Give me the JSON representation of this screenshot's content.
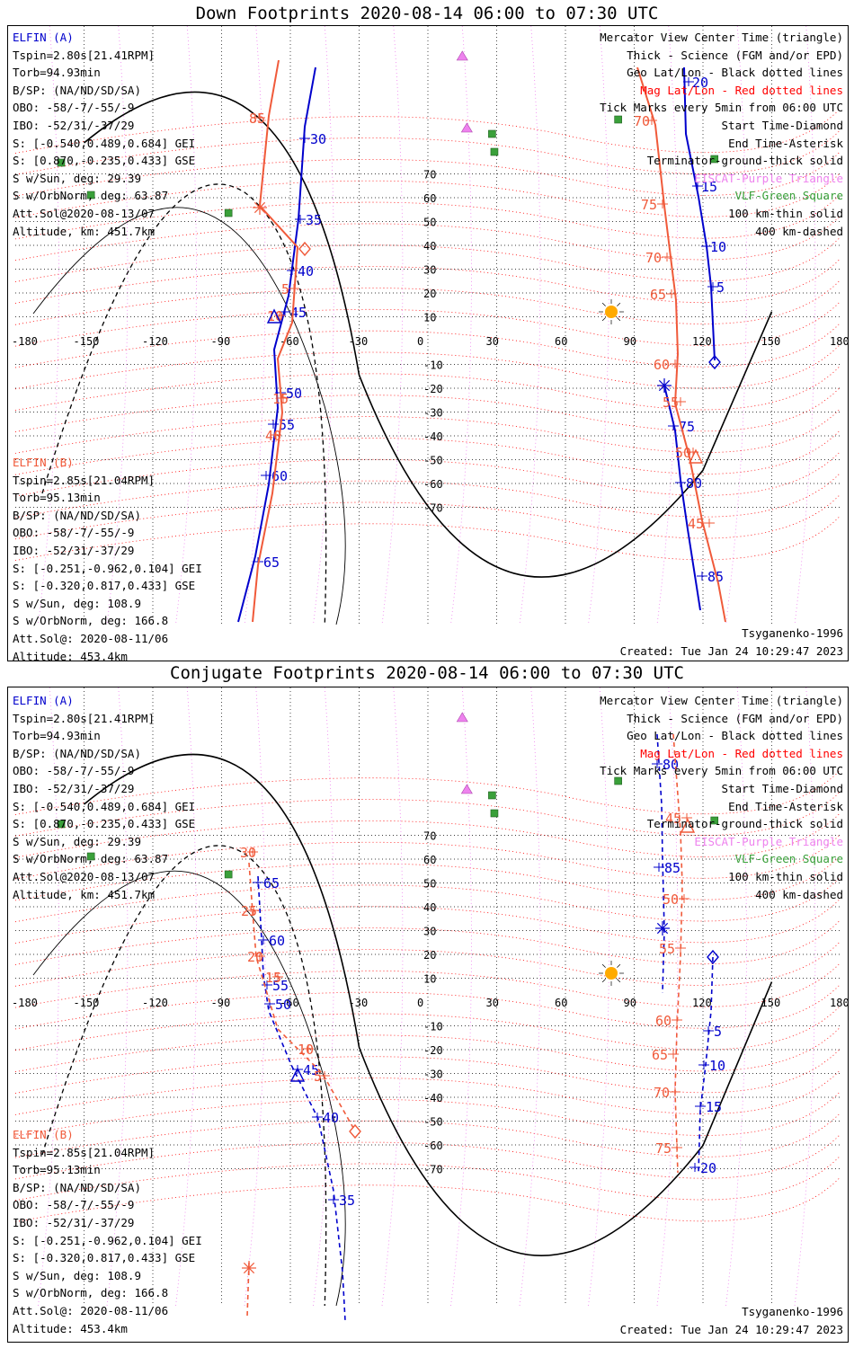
{
  "panels": [
    {
      "title": "Down Footprints 2020-08-14 06:00 to 07:30 UTC",
      "mode": "down",
      "elfin_a": {
        "name": "ELFIN (A)",
        "lines": [
          "Tspin=2.80s[21.41RPM]",
          "Torb=94.93min",
          "B/SP: (NA/ND/SD/SA)",
          "OBO: -58/-7/-55/-9",
          "IBO: -52/31/-37/29",
          "S: [-0.540,0.489,0.684] GEI",
          "S: [0.870,-0.235,0.433] GSE",
          "S w/Sun, deg: 29.39",
          "S w/OrbNorm, deg: 63.87",
          "Att.Sol@2020-08-13/07",
          "Altitude, km: 451.7km"
        ]
      },
      "elfin_b": {
        "name": "ELFIN (B)",
        "lines": [
          "Tspin=2.85s[21.04RPM]",
          "Torb=95.13min",
          "B/SP: (NA/ND/SD/SA)",
          "OBO: -58/-7/-55/-9",
          "IBO: -52/31/-37/29",
          "S: [-0.251,-0.962,0.104] GEI",
          "S: [-0.320,0.817,0.433] GSE",
          "S w/Sun, deg: 108.9",
          "S w/OrbNorm, deg: 166.8",
          "Att.Sol@: 2020-08-11/06",
          "Altitude: 453.4km"
        ]
      },
      "legend": [
        {
          "text": "Mercator View Center Time (triangle)",
          "color": "black"
        },
        {
          "text": "Thick - Science (FGM and/or EPD)",
          "color": "black"
        },
        {
          "text": "Geo Lat/Lon - Black dotted lines",
          "color": "black"
        },
        {
          "text": "Mag Lat/Lon - Red dotted lines",
          "color": "red"
        },
        {
          "text": "Tick Marks every 5min from 06:00 UTC",
          "color": "black"
        },
        {
          "text": "Start Time-Diamond",
          "color": "black"
        },
        {
          "text": "End Time-Asterisk",
          "color": "black"
        },
        {
          "text": "Terminator-ground-thick solid",
          "color": "black"
        },
        {
          "text": "EISCAT-Purple Triangle",
          "color": "violet"
        },
        {
          "text": "VLF-Green Square",
          "color": "green"
        },
        {
          "text": "100 km-thin solid",
          "color": "black"
        },
        {
          "text": "400 km-dashed",
          "color": "black"
        }
      ],
      "footer_left": "Tsyganenko-1996",
      "footer_right": "Created: Tue Jan 24 10:29:47 2023"
    },
    {
      "title": "Conjugate Footprints 2020-08-14 06:00 to 07:30 UTC",
      "mode": "conjugate",
      "elfin_a": {
        "name": "ELFIN (A)",
        "lines": [
          "Tspin=2.80s[21.41RPM]",
          "Torb=94.93min",
          "B/SP: (NA/ND/SD/SA)",
          "OBO: -58/-7/-55/-9",
          "IBO: -52/31/-37/29",
          "S: [-0.540,0.489,0.684] GEI",
          "S: [0.870,-0.235,0.433] GSE",
          "S w/Sun, deg: 29.39",
          "S w/OrbNorm, deg: 63.87",
          "Att.Sol@2020-08-13/07",
          "Altitude, km: 451.7km"
        ]
      },
      "elfin_b": {
        "name": "ELFIN (B)",
        "lines": [
          "Tspin=2.85s[21.04RPM]",
          "Torb=95.13min",
          "B/SP: (NA/ND/SD/SA)",
          "OBO: -58/-7/-55/-9",
          "IBO: -52/31/-37/29",
          "S: [-0.251,-0.962,0.104] GEI",
          "S: [-0.320,0.817,0.433] GSE",
          "S w/Sun, deg: 108.9",
          "S w/OrbNorm, deg: 166.8",
          "Att.Sol@: 2020-08-11/06",
          "Altitude: 453.4km"
        ]
      },
      "legend": [
        {
          "text": "Mercator View Center Time (triangle)",
          "color": "black"
        },
        {
          "text": "Thick - Science (FGM and/or EPD)",
          "color": "black"
        },
        {
          "text": "Geo Lat/Lon - Black dotted lines",
          "color": "black"
        },
        {
          "text": "Mag Lat/Lon - Red dotted lines",
          "color": "red"
        },
        {
          "text": "Tick Marks every 5min from 06:00 UTC",
          "color": "black"
        },
        {
          "text": "Start Time-Diamond",
          "color": "black"
        },
        {
          "text": "End Time-Asterisk",
          "color": "black"
        },
        {
          "text": "Terminator-ground-thick solid",
          "color": "black"
        },
        {
          "text": "EISCAT-Purple Triangle",
          "color": "violet"
        },
        {
          "text": "VLF-Green Square",
          "color": "green"
        },
        {
          "text": "100 km-thin solid",
          "color": "black"
        },
        {
          "text": "400 km-dashed",
          "color": "black"
        }
      ],
      "footer_left": "Tsyganenko-1996",
      "footer_right": "Created: Tue Jan 24 10:29:47 2023"
    }
  ],
  "map": {
    "lon_labels": [
      "-180",
      "-150",
      "-120",
      "-90",
      "-60",
      "-30",
      "0",
      "30",
      "60",
      "90",
      "120",
      "150",
      "180"
    ],
    "lat_labels": [
      "70",
      "60",
      "50",
      "40",
      "30",
      "20",
      "10",
      "-10",
      "-20",
      "-30",
      "-40",
      "-50",
      "-60",
      "-70"
    ],
    "colors": {
      "elfin_a": "#0000cc",
      "elfin_b": "#f05a3a",
      "mag_grid": "#ff0000",
      "eiscat": "#ee82ee",
      "vlf": "#3aa03a",
      "sun": "#ffaa00"
    }
  },
  "tracks": {
    "down": {
      "a_ticks": [
        "20",
        "15",
        "10",
        "5",
        "30",
        "35",
        "40",
        "45",
        "50",
        "55",
        "60",
        "65",
        "75",
        "80",
        "85"
      ],
      "b_ticks": [
        "85",
        "5",
        "10",
        "15",
        "70",
        "75",
        "70",
        "65",
        "60",
        "55",
        "50",
        "45",
        "40"
      ]
    },
    "conjugate": {
      "a_ticks": [
        "80",
        "85",
        "5",
        "10",
        "15",
        "20",
        "65",
        "60",
        "55",
        "50",
        "45",
        "40",
        "35"
      ],
      "b_ticks": [
        "45",
        "50",
        "55",
        "60",
        "65",
        "70",
        "75",
        "30",
        "25",
        "20",
        "15",
        "10",
        "5"
      ]
    }
  }
}
